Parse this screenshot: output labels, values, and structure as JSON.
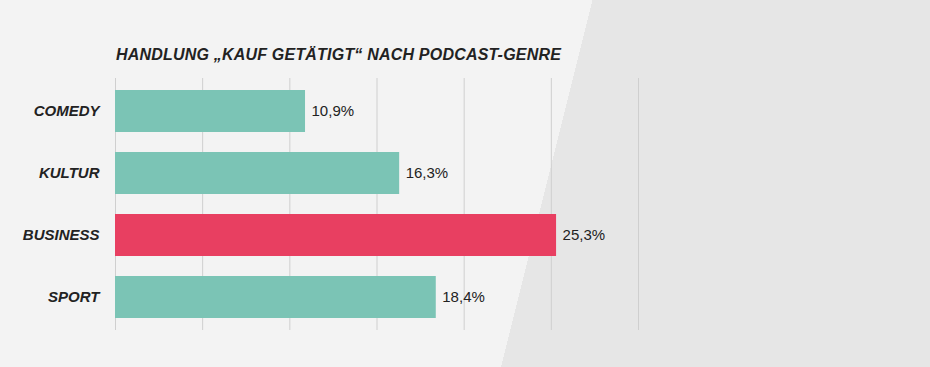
{
  "chart_data": {
    "type": "bar",
    "orientation": "horizontal",
    "title": "HANDLUNG „KAUF GETÄTIGT“ NACH PODCAST-GENRE",
    "categories": [
      "COMEDY",
      "KULTUR",
      "BUSINESS",
      "SPORT"
    ],
    "values": [
      10.9,
      16.3,
      25.3,
      18.4
    ],
    "value_labels": [
      "10,9%",
      "16,3%",
      "25,3%",
      "18,4%"
    ],
    "colors": [
      "#7bc4b5",
      "#7bc4b5",
      "#e83f61",
      "#7bc4b5"
    ],
    "xlim": [
      0,
      30
    ],
    "xticks": [
      0,
      5,
      10,
      15,
      20,
      25,
      30
    ],
    "grid": true,
    "tick_labels": "y",
    "data_labels": true
  }
}
